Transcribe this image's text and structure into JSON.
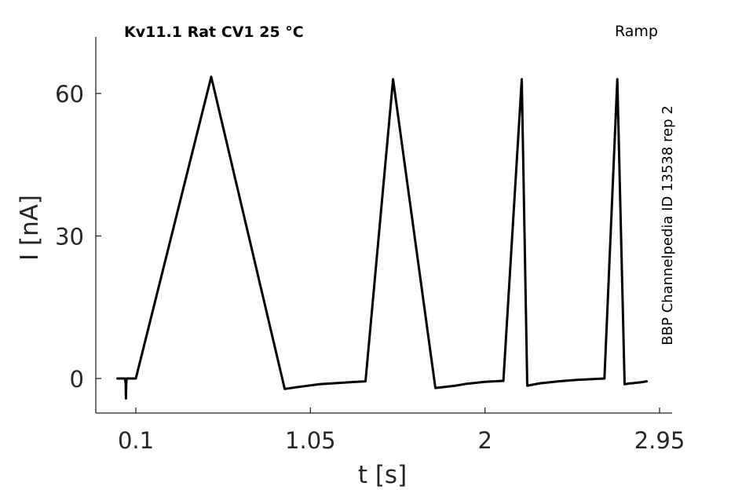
{
  "chart_data": {
    "type": "line",
    "title": "Kv11.1  Rat  CV1  25 °C",
    "protocol_label": "Ramp",
    "side_label": "BBP Channelpedia ID 13538 rep 2",
    "xlabel": "t [s]",
    "ylabel": "I [nA]",
    "xlim": [
      -0.1,
      3.0
    ],
    "ylim": [
      -7.5,
      72
    ],
    "xticks": [
      0.1,
      1.05,
      2,
      2.95
    ],
    "xtick_labels": [
      "0.1",
      "1.05",
      "2",
      "2.95"
    ],
    "yticks": [
      0,
      30,
      60
    ],
    "ytick_labels": [
      "0",
      "30",
      "60"
    ],
    "grid": false,
    "series": [
      {
        "color": "#000000",
        "x": [
          -0.0,
          0.04,
          0.045,
          0.046,
          0.048,
          0.05,
          0.05,
          0.1,
          0.51,
          0.91,
          1.0,
          1.1,
          1.3,
          1.35,
          1.5,
          1.73,
          1.84,
          1.9,
          2.0,
          2.1,
          2.1,
          2.2,
          2.23,
          2.3,
          2.4,
          2.5,
          2.65,
          2.72,
          2.76,
          2.79,
          2.8,
          2.85,
          2.88
        ],
        "y": [
          0.0,
          0.0,
          -1.0,
          -4.2,
          -1.0,
          0.0,
          0.0,
          0.0,
          63.5,
          -2.2,
          -1.7,
          -1.2,
          -0.7,
          -0.6,
          63.0,
          -2.0,
          -1.5,
          -1.1,
          -0.7,
          -0.5,
          -0.5,
          63.0,
          -1.5,
          -1.0,
          -0.6,
          -0.3,
          0.0,
          63.0,
          -1.2,
          -1.0,
          -1.0,
          -0.8,
          -0.6
        ]
      }
    ]
  }
}
